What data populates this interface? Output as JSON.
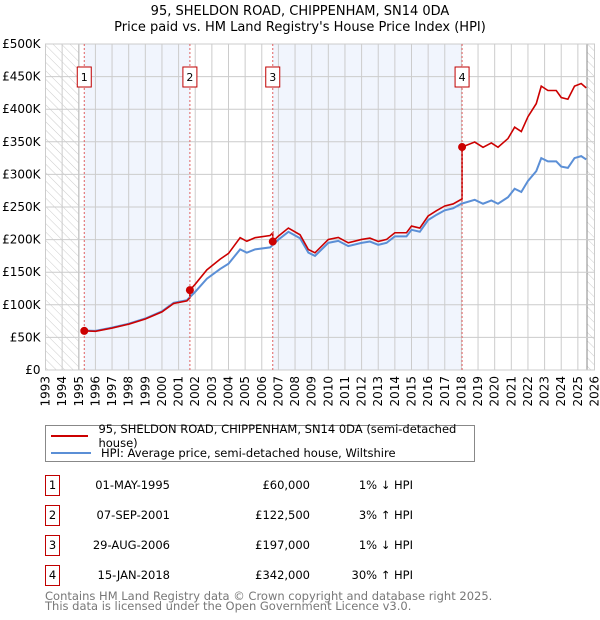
{
  "chart_data": {
    "type": "line",
    "title": "95, SHELDON ROAD, CHIPPENHAM, SN14 0DA",
    "subtitle": "Price paid vs. HM Land Registry's House Price Index (HPI)",
    "xlim": [
      1993,
      2026
    ],
    "ylim": [
      0,
      500000
    ],
    "x_ticks": [
      "1993",
      "1994",
      "1995",
      "1996",
      "1997",
      "1998",
      "1999",
      "2000",
      "2001",
      "2002",
      "2003",
      "2004",
      "2005",
      "2006",
      "2007",
      "2008",
      "2009",
      "2010",
      "2011",
      "2012",
      "2013",
      "2014",
      "2015",
      "2016",
      "2017",
      "2018",
      "2019",
      "2020",
      "2021",
      "2022",
      "2023",
      "2024",
      "2025",
      "2026"
    ],
    "y_ticks": [
      {
        "v": 0,
        "label": "£0"
      },
      {
        "v": 50000,
        "label": "£50K"
      },
      {
        "v": 100000,
        "label": "£100K"
      },
      {
        "v": 150000,
        "label": "£150K"
      },
      {
        "v": 200000,
        "label": "£200K"
      },
      {
        "v": 250000,
        "label": "£250K"
      },
      {
        "v": 300000,
        "label": "£300K"
      },
      {
        "v": 350000,
        "label": "£350K"
      },
      {
        "v": 400000,
        "label": "£400K"
      },
      {
        "v": 450000,
        "label": "£450K"
      },
      {
        "v": 500000,
        "label": "£500K"
      }
    ],
    "grid": true,
    "hatched_ranges": [
      [
        1993,
        1995
      ],
      [
        2025.55,
        2026
      ]
    ],
    "shaded_ranges": [
      [
        1995.33,
        2001.68
      ],
      [
        2006.66,
        2018.04
      ]
    ],
    "series": [
      {
        "name": "95, SHELDON ROAD, CHIPPENHAM, SN14 0DA (semi-detached house)",
        "color": "#cc0000",
        "derived_from_hpi": true
      },
      {
        "name": "HPI: Average price, semi-detached house, Wiltshire",
        "color": "#5b8fd6",
        "x": [
          1995.33,
          1996,
          1997,
          1998,
          1999,
          2000,
          2000.7,
          2001.5,
          2002,
          2002.7,
          2003.5,
          2004,
          2004.7,
          2005.1,
          2005.6,
          2006.5,
          2007,
          2007.6,
          2008.3,
          2008.8,
          2009.2,
          2010,
          2010.6,
          2011.2,
          2012,
          2012.5,
          2013,
          2013.5,
          2014,
          2014.7,
          2015,
          2015.5,
          2016,
          2016.5,
          2017,
          2017.5,
          2018,
          2018.8,
          2019.3,
          2019.8,
          2020.2,
          2020.8,
          2021.2,
          2021.6,
          2022,
          2022.5,
          2022.8,
          2023.2,
          2023.7,
          2024,
          2024.4,
          2024.8,
          2025.2,
          2025.5
        ],
        "y": [
          60600,
          60000,
          65000,
          71000,
          79000,
          90000,
          103000,
          107000,
          120000,
          140000,
          155000,
          163000,
          185000,
          180000,
          185000,
          188000,
          200000,
          212000,
          202000,
          180000,
          175000,
          195000,
          198000,
          190000,
          195000,
          197000,
          192000,
          195000,
          205000,
          205000,
          215000,
          212000,
          230000,
          238000,
          245000,
          248000,
          255000,
          261000,
          255000,
          260000,
          255000,
          265000,
          278000,
          273000,
          290000,
          305000,
          325000,
          320000,
          320000,
          312000,
          310000,
          325000,
          328000,
          323000
        ]
      }
    ],
    "sales": [
      {
        "n": "1",
        "x": 1995.33,
        "date": "01-MAY-1995",
        "price": 60000,
        "price_label": "£60,000",
        "hpi": "1% ↓ HPI"
      },
      {
        "n": "2",
        "x": 2001.68,
        "date": "07-SEP-2001",
        "price": 122500,
        "price_label": "£122,500",
        "hpi": "3% ↑ HPI"
      },
      {
        "n": "3",
        "x": 2006.66,
        "date": "29-AUG-2006",
        "price": 197000,
        "price_label": "£197,000",
        "hpi": "1% ↓ HPI"
      },
      {
        "n": "4",
        "x": 2018.04,
        "date": "15-JAN-2018",
        "price": 342000,
        "price_label": "£342,000",
        "hpi": "30% ↑ HPI"
      }
    ]
  },
  "legend": {
    "property": "95, SHELDON ROAD, CHIPPENHAM, SN14 0DA (semi-detached house)",
    "hpi": "HPI: Average price, semi-detached house, Wiltshire"
  },
  "footer": {
    "line1": "Contains HM Land Registry data © Crown copyright and database right 2025.",
    "line2": "This data is licensed under the Open Government Licence v3.0."
  }
}
